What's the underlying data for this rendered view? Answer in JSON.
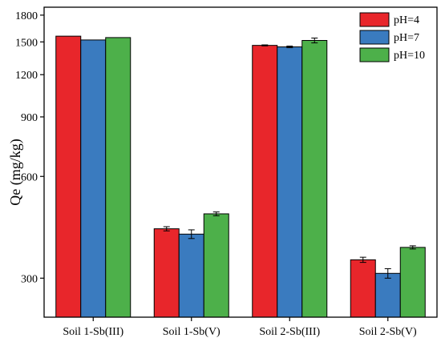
{
  "chart_data": {
    "type": "bar",
    "ylabel": "Qe (mg/kg)",
    "xlabel": "",
    "title": "",
    "y_scale": "log",
    "ylim": [
      230,
      1900
    ],
    "yticks": [
      300,
      600,
      900,
      1200,
      1500,
      1800
    ],
    "ytick_labels": [
      "300",
      "600",
      "900",
      "1200",
      "1500",
      "1800"
    ],
    "categories": [
      "Soil 1-Sb(III)",
      "Soil 1-Sb(V)",
      "Soil 2-Sb(III)",
      "Soil 2-Sb(V)"
    ],
    "series": [
      {
        "name": "pH=4",
        "color": "#e8262b",
        "values": [
          1560,
          420,
          1465,
          340
        ],
        "errors": [
          0,
          6,
          5,
          6
        ]
      },
      {
        "name": "pH=7",
        "color": "#3a7bbf",
        "values": [
          1520,
          405,
          1450,
          310
        ],
        "errors": [
          0,
          12,
          8,
          10
        ]
      },
      {
        "name": "pH=10",
        "color": "#4db04a",
        "values": [
          1545,
          465,
          1515,
          370
        ],
        "errors": [
          0,
          6,
          25,
          4
        ]
      }
    ],
    "legend_position": "top-right",
    "grid": false
  }
}
